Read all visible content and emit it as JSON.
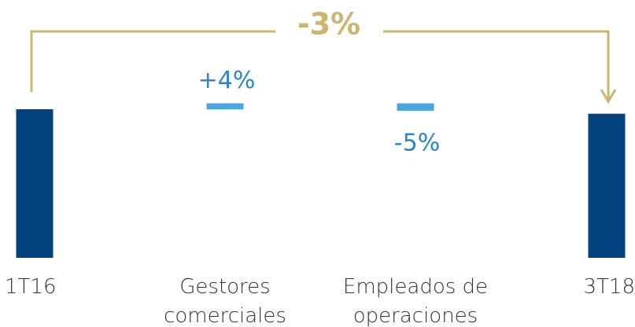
{
  "chart_data": {
    "type": "waterfall",
    "categories": [
      "1T16",
      "Gestores comerciales",
      "Empleados de operaciones",
      "3T18"
    ],
    "values": [
      100,
      4,
      -5,
      97
    ],
    "value_labels": [
      null,
      "+4%",
      "-5%",
      null
    ],
    "measures": [
      "total",
      "relative",
      "relative",
      "total"
    ],
    "total_color": "#00437f",
    "change_color": "#49a5e6",
    "label_color": "#2a86c8",
    "annotation": "-3%",
    "annotation_color": "#cdb56e"
  }
}
